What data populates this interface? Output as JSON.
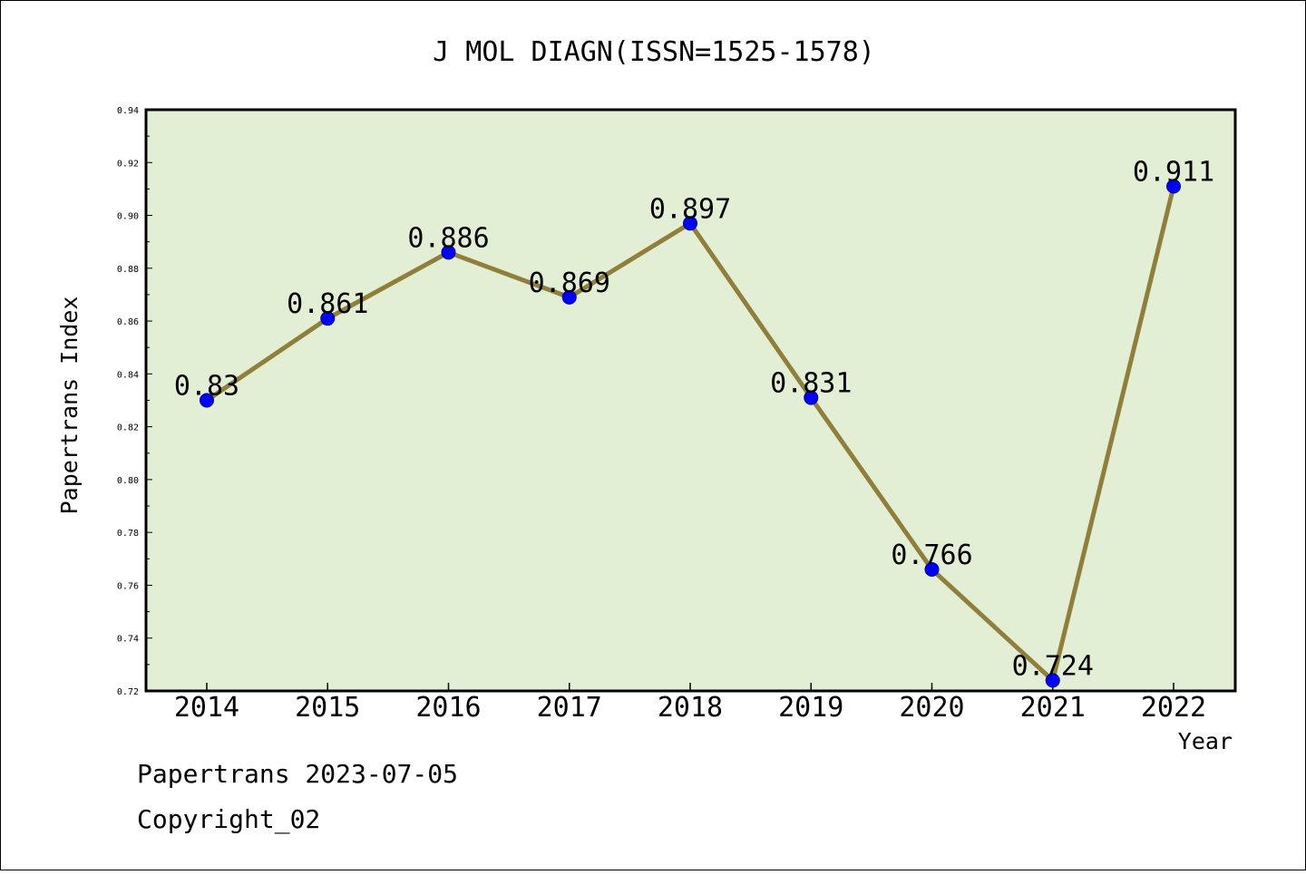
{
  "chart_data": {
    "type": "line",
    "title": "J MOL DIAGN(ISSN=1525-1578)",
    "xlabel": "Year",
    "ylabel": "Papertrans Index",
    "categories": [
      "2014",
      "2015",
      "2016",
      "2017",
      "2018",
      "2019",
      "2020",
      "2021",
      "2022"
    ],
    "values": [
      0.83,
      0.861,
      0.886,
      0.869,
      0.897,
      0.831,
      0.766,
      0.724,
      0.911
    ],
    "data_labels": [
      "0.83",
      "0.861",
      "0.886",
      "0.869",
      "0.897",
      "0.831",
      "0.766",
      "0.724",
      "0.911"
    ],
    "ylim": [
      0.72,
      0.94
    ],
    "yticks": [
      "0.72",
      "0.74",
      "0.76",
      "0.78",
      "0.80",
      "0.82",
      "0.84",
      "0.86",
      "0.88",
      "0.90",
      "0.92",
      "0.94"
    ],
    "grid": false,
    "legend": "none",
    "colors": {
      "plot_background": "#e2efd4",
      "line": "#8f7f3a",
      "marker": "#0000ff"
    }
  },
  "footer": {
    "line1": "Papertrans 2023-07-05",
    "line2": "Copyright_02"
  }
}
